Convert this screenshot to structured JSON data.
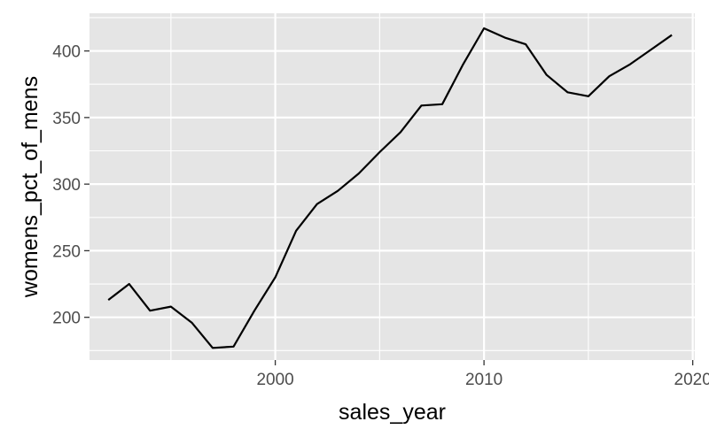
{
  "chart_data": {
    "type": "line",
    "title": "",
    "xlabel": "sales_year",
    "ylabel": "womens_pct_of_mens",
    "xlim": [
      1991.1,
      2020.1
    ],
    "ylim": [
      167.9,
      428.3
    ],
    "x_major_ticks": [
      2000,
      2010,
      2020
    ],
    "x_tick_labels": [
      "2000",
      "2010",
      "2020"
    ],
    "x_minor_ticks": [
      1995,
      2005,
      2015
    ],
    "y_major_ticks": [
      200,
      250,
      300,
      350,
      400
    ],
    "y_tick_labels": [
      "200",
      "250",
      "300",
      "350",
      "400"
    ],
    "y_minor_ticks": [
      175,
      225,
      275,
      325,
      375,
      425
    ],
    "grid": true,
    "panel_background": "#e5e5e5",
    "grid_color": "#ffffff",
    "line_color": "#000000",
    "x": [
      1992,
      1993,
      1994,
      1995,
      1996,
      1997,
      1998,
      1999,
      2000,
      2001,
      2002,
      2003,
      2004,
      2005,
      2006,
      2007,
      2008,
      2009,
      2010,
      2011,
      2012,
      2013,
      2014,
      2015,
      2016,
      2017,
      2018,
      2019
    ],
    "y": [
      213,
      225,
      205,
      208,
      196,
      177,
      178,
      205,
      230,
      265,
      285,
      295,
      308,
      324,
      339,
      359,
      360,
      390,
      417,
      410,
      405,
      382,
      369,
      366,
      381,
      390,
      401,
      412
    ]
  }
}
